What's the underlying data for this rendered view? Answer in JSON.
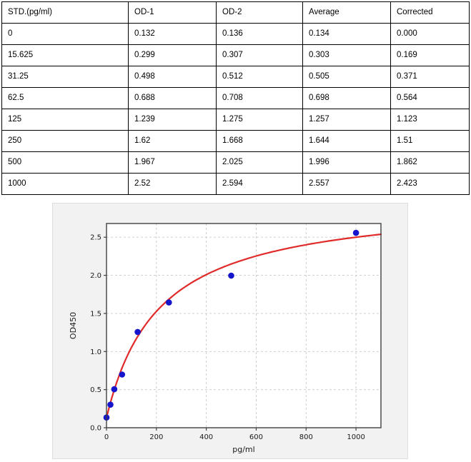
{
  "table": {
    "columns": [
      "STD.(pg/ml)",
      "OD-1",
      "OD-2",
      "Average",
      "Corrected"
    ],
    "rows": [
      [
        "0",
        "0.132",
        "0.136",
        "0.134",
        "0.000"
      ],
      [
        "15.625",
        "0.299",
        "0.307",
        "0.303",
        "0.169"
      ],
      [
        "31.25",
        "0.498",
        "0.512",
        "0.505",
        "0.371"
      ],
      [
        "62.5",
        "0.688",
        "0.708",
        "0.698",
        "0.564"
      ],
      [
        "125",
        "1.239",
        "1.275",
        "1.257",
        "1.123"
      ],
      [
        "250",
        "1.62",
        "1.668",
        "1.644",
        "1.51"
      ],
      [
        "500",
        "1.967",
        "2.025",
        "1.996",
        "1.862"
      ],
      [
        "1000",
        "2.52",
        "2.594",
        "2.557",
        "2.423"
      ]
    ]
  },
  "chart_data": {
    "type": "scatter",
    "title": "",
    "xlabel": "pg/ml",
    "ylabel": "OD450",
    "xlim": [
      0,
      1100
    ],
    "ylim": [
      0,
      2.68
    ],
    "x_ticks": [
      "0",
      "200",
      "400",
      "600",
      "800",
      "1000"
    ],
    "y_ticks": [
      "0.0",
      "0.5",
      "1.0",
      "1.5",
      "2.0",
      "2.5"
    ],
    "grid": true,
    "legend": "none",
    "series": [
      {
        "name": "standard-points",
        "type": "scatter",
        "x": [
          0,
          15.625,
          31.25,
          62.5,
          125,
          250,
          500,
          1000
        ],
        "y": [
          0.134,
          0.303,
          0.505,
          0.698,
          1.257,
          1.644,
          1.996,
          2.557
        ],
        "color": "#1515cc"
      },
      {
        "name": "fit-curve",
        "type": "line",
        "model": "4PL",
        "params": {
          "a": 0.13,
          "b": 1,
          "c": 211,
          "d": 3.0
        },
        "color": "#e12b2b"
      }
    ],
    "colors": {
      "figure_bg": "#f2f2f2",
      "plot_bg": "#ffffff",
      "grid": "#c9c9c9",
      "spine": "#404040",
      "tick_text": "#1a1a1a"
    }
  }
}
